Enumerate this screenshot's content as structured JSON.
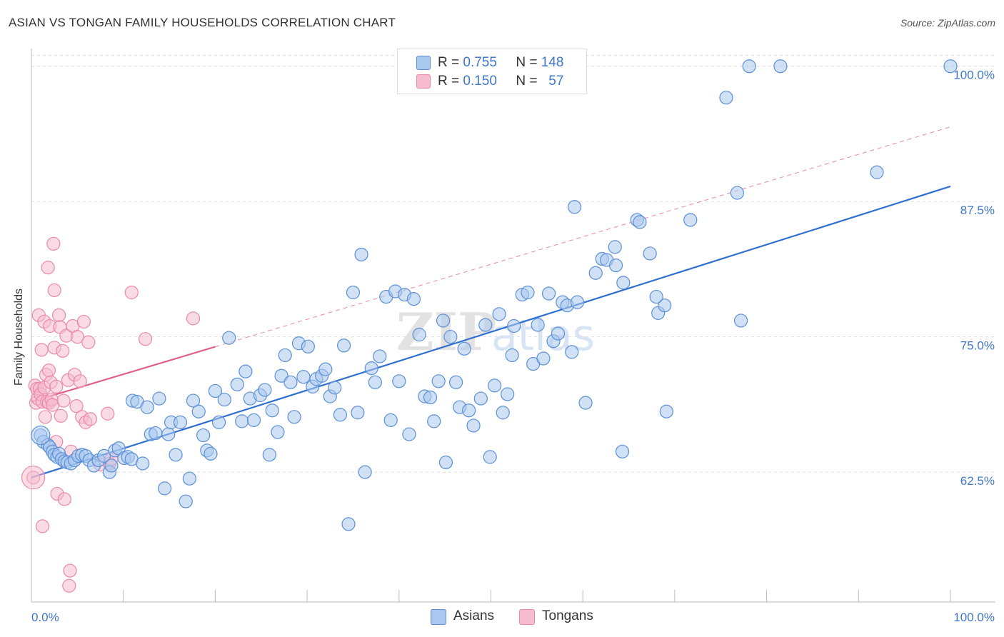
{
  "header": {
    "title": "ASIAN VS TONGAN FAMILY HOUSEHOLDS CORRELATION CHART",
    "source": "Source: ZipAtlas.com"
  },
  "legend": {
    "asians": {
      "r_label": "R =",
      "r_value": "0.755",
      "n_label": "N =",
      "n_value": "148"
    },
    "tongans": {
      "r_label": "R =",
      "r_value": "0.150",
      "n_label": "N =",
      "n_value": "57"
    }
  },
  "bottom_legend": {
    "asians": "Asians",
    "tongans": "Tongans"
  },
  "watermark": {
    "zip": "ZIP",
    "atlas": "atlas"
  },
  "colors": {
    "asians_fill": "#a9c8ef",
    "asians_stroke": "#5b8fd6",
    "asians_line": "#2e6fd0",
    "tongans_fill": "#f6bccd",
    "tongans_stroke": "#e98aa8",
    "tongans_line": "#e0608a",
    "grid": "#dddddd",
    "tick_text": "#3f77c9"
  },
  "chart_data": {
    "type": "scatter",
    "title": "ASIAN VS TONGAN FAMILY HOUSEHOLDS CORRELATION CHART",
    "xlabel": "",
    "ylabel": "Family Households",
    "xlim": [
      0,
      100
    ],
    "ylim": [
      50.5,
      101.5
    ],
    "x_tick_labels": [
      {
        "value": 0,
        "label": "0.0%"
      },
      {
        "value": 100,
        "label": "100.0%"
      }
    ],
    "y_ticks": [
      {
        "value": 62.5,
        "label": "62.5%"
      },
      {
        "value": 75.0,
        "label": "75.0%"
      },
      {
        "value": 87.5,
        "label": "87.5%"
      },
      {
        "value": 100.0,
        "label": "100.0%"
      }
    ],
    "grid": "horizontal dashed",
    "legend_position": "top-center",
    "series": [
      {
        "name": "Asians",
        "trend": {
          "x0": 0,
          "y0": 62.0,
          "x1": 100,
          "y1": 88.9,
          "style": "solid"
        },
        "points": [
          [
            1.0,
            65.9
          ],
          [
            1.3,
            65.3
          ],
          [
            1.8,
            65.0
          ],
          [
            2.0,
            64.8
          ],
          [
            2.3,
            64.4
          ],
          [
            2.5,
            64.1
          ],
          [
            2.8,
            63.9
          ],
          [
            3.0,
            64.2
          ],
          [
            3.3,
            63.7
          ],
          [
            3.6,
            63.5
          ],
          [
            3.9,
            63.4
          ],
          [
            4.3,
            63.3
          ],
          [
            4.7,
            63.6
          ],
          [
            5.1,
            64.0
          ],
          [
            5.5,
            64.1
          ],
          [
            5.9,
            64.0
          ],
          [
            6.3,
            63.6
          ],
          [
            6.8,
            63.1
          ],
          [
            7.3,
            63.6
          ],
          [
            7.9,
            64.0
          ],
          [
            8.5,
            62.5
          ],
          [
            8.7,
            63.1
          ],
          [
            9.1,
            64.5
          ],
          [
            9.5,
            64.7
          ],
          [
            10.1,
            63.8
          ],
          [
            10.5,
            63.9
          ],
          [
            10.9,
            63.7
          ],
          [
            11.0,
            69.1
          ],
          [
            11.5,
            69.0
          ],
          [
            12.1,
            63.3
          ],
          [
            12.6,
            68.5
          ],
          [
            13.0,
            66.0
          ],
          [
            13.5,
            66.1
          ],
          [
            13.9,
            69.3
          ],
          [
            14.5,
            61.0
          ],
          [
            14.9,
            66.0
          ],
          [
            15.2,
            67.1
          ],
          [
            15.7,
            64.1
          ],
          [
            16.2,
            67.1
          ],
          [
            16.8,
            59.8
          ],
          [
            17.2,
            61.9
          ],
          [
            17.6,
            69.1
          ],
          [
            18.2,
            68.1
          ],
          [
            18.7,
            65.9
          ],
          [
            19.1,
            64.5
          ],
          [
            19.5,
            64.2
          ],
          [
            20.0,
            70.0
          ],
          [
            20.4,
            67.1
          ],
          [
            21.0,
            69.2
          ],
          [
            21.5,
            74.9
          ],
          [
            22.4,
            70.6
          ],
          [
            22.9,
            67.2
          ],
          [
            23.3,
            71.8
          ],
          [
            23.8,
            69.3
          ],
          [
            24.2,
            67.3
          ],
          [
            24.9,
            69.6
          ],
          [
            25.4,
            70.1
          ],
          [
            25.9,
            64.1
          ],
          [
            26.2,
            68.2
          ],
          [
            26.8,
            66.2
          ],
          [
            27.2,
            71.4
          ],
          [
            27.6,
            73.3
          ],
          [
            28.2,
            70.8
          ],
          [
            28.6,
            67.6
          ],
          [
            29.1,
            74.4
          ],
          [
            29.6,
            71.3
          ],
          [
            30.1,
            74.1
          ],
          [
            30.6,
            70.4
          ],
          [
            31.0,
            71.1
          ],
          [
            31.6,
            71.4
          ],
          [
            32.0,
            72.0
          ],
          [
            32.5,
            69.5
          ],
          [
            33.0,
            70.3
          ],
          [
            33.6,
            67.8
          ],
          [
            34.0,
            74.2
          ],
          [
            34.5,
            57.7
          ],
          [
            35.0,
            79.1
          ],
          [
            35.5,
            68.0
          ],
          [
            35.9,
            82.6
          ],
          [
            36.3,
            62.5
          ],
          [
            37.0,
            72.1
          ],
          [
            37.4,
            70.8
          ],
          [
            37.9,
            73.2
          ],
          [
            38.6,
            78.7
          ],
          [
            39.1,
            67.3
          ],
          [
            39.6,
            79.2
          ],
          [
            40.0,
            70.9
          ],
          [
            40.6,
            78.9
          ],
          [
            41.1,
            66.0
          ],
          [
            41.6,
            78.5
          ],
          [
            42.2,
            75.2
          ],
          [
            42.8,
            69.5
          ],
          [
            43.4,
            69.4
          ],
          [
            43.8,
            67.2
          ],
          [
            44.3,
            70.9
          ],
          [
            44.8,
            76.5
          ],
          [
            45.1,
            63.4
          ],
          [
            45.6,
            75.0
          ],
          [
            46.2,
            70.8
          ],
          [
            46.6,
            68.5
          ],
          [
            47.1,
            73.9
          ],
          [
            47.6,
            68.2
          ],
          [
            48.1,
            66.8
          ],
          [
            48.9,
            69.3
          ],
          [
            49.4,
            76.1
          ],
          [
            49.9,
            63.9
          ],
          [
            50.4,
            70.5
          ],
          [
            50.9,
            77.1
          ],
          [
            51.3,
            68.0
          ],
          [
            51.8,
            69.7
          ],
          [
            52.3,
            73.3
          ],
          [
            52.5,
            76.0
          ],
          [
            53.4,
            78.9
          ],
          [
            54.0,
            79.1
          ],
          [
            54.6,
            72.5
          ],
          [
            55.1,
            76.1
          ],
          [
            55.7,
            73.0
          ],
          [
            56.3,
            79.0
          ],
          [
            56.8,
            74.6
          ],
          [
            57.3,
            75.3
          ],
          [
            57.8,
            78.2
          ],
          [
            58.3,
            77.9
          ],
          [
            58.8,
            73.6
          ],
          [
            59.1,
            87.0
          ],
          [
            59.4,
            78.2
          ],
          [
            60.3,
            68.9
          ],
          [
            61.4,
            80.9
          ],
          [
            62.1,
            82.2
          ],
          [
            62.6,
            82.1
          ],
          [
            63.6,
            81.6
          ],
          [
            64.3,
            64.4
          ],
          [
            64.4,
            80.0
          ],
          [
            65.9,
            85.8
          ],
          [
            66.2,
            85.6
          ],
          [
            67.3,
            82.7
          ],
          [
            68.2,
            77.2
          ],
          [
            68.9,
            77.9
          ],
          [
            69.1,
            68.1
          ],
          [
            71.7,
            85.8
          ],
          [
            75.6,
            97.1
          ],
          [
            76.8,
            88.3
          ],
          [
            77.2,
            76.5
          ],
          [
            78.1,
            100.0
          ],
          [
            81.5,
            100.0
          ],
          [
            92.0,
            90.2
          ],
          [
            100.0,
            100.0
          ],
          [
            63.5,
            83.3
          ],
          [
            68.0,
            78.7
          ]
        ]
      },
      {
        "name": "Tongans",
        "trend": {
          "x0": 0,
          "y0": 69.0,
          "x1": 100,
          "y1": 94.4,
          "solid_to_x": 20,
          "style": "solid then dashed"
        },
        "points": [
          [
            0.2,
            62.0
          ],
          [
            0.4,
            70.5
          ],
          [
            0.5,
            68.9
          ],
          [
            0.6,
            70.2
          ],
          [
            0.7,
            69.3
          ],
          [
            0.8,
            77.0
          ],
          [
            0.9,
            70.2
          ],
          [
            1.0,
            69.7
          ],
          [
            1.1,
            73.8
          ],
          [
            1.2,
            69.0
          ],
          [
            1.2,
            57.5
          ],
          [
            1.4,
            76.4
          ],
          [
            1.4,
            70.3
          ],
          [
            1.5,
            67.6
          ],
          [
            1.6,
            71.5
          ],
          [
            1.7,
            69.0
          ],
          [
            1.8,
            81.4
          ],
          [
            1.9,
            71.9
          ],
          [
            1.9,
            68.9
          ],
          [
            2.0,
            76.0
          ],
          [
            2.1,
            70.8
          ],
          [
            2.2,
            69.2
          ],
          [
            2.3,
            68.7
          ],
          [
            2.4,
            83.6
          ],
          [
            2.5,
            79.3
          ],
          [
            2.5,
            74.0
          ],
          [
            2.7,
            65.3
          ],
          [
            2.7,
            70.4
          ],
          [
            2.8,
            60.5
          ],
          [
            3.0,
            77.0
          ],
          [
            3.1,
            75.9
          ],
          [
            3.2,
            67.7
          ],
          [
            3.4,
            73.7
          ],
          [
            3.5,
            69.1
          ],
          [
            3.6,
            60.0
          ],
          [
            3.8,
            75.1
          ],
          [
            4.0,
            71.0
          ],
          [
            4.1,
            52.0
          ],
          [
            4.2,
            53.4
          ],
          [
            4.3,
            64.4
          ],
          [
            4.5,
            76.0
          ],
          [
            4.7,
            71.5
          ],
          [
            4.9,
            68.6
          ],
          [
            5.0,
            75.0
          ],
          [
            5.3,
            70.9
          ],
          [
            5.5,
            67.6
          ],
          [
            5.7,
            76.4
          ],
          [
            5.9,
            67.1
          ],
          [
            6.2,
            74.5
          ],
          [
            6.4,
            67.4
          ],
          [
            7.5,
            63.2
          ],
          [
            8.3,
            67.9
          ],
          [
            8.5,
            63.3
          ],
          [
            8.7,
            63.7
          ],
          [
            10.9,
            79.1
          ],
          [
            12.4,
            74.8
          ],
          [
            17.6,
            76.7
          ]
        ]
      }
    ]
  }
}
